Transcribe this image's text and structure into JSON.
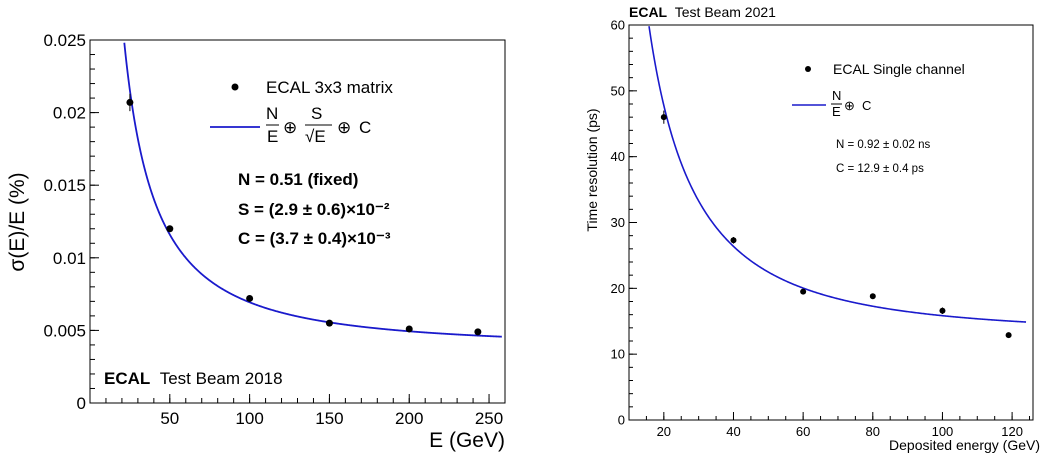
{
  "chart_data": [
    {
      "type": "scatter",
      "xlabel": "E (GeV)",
      "ylabel": "σ(E)/E (%)",
      "xlim": [
        0,
        260
      ],
      "ylim": [
        0,
        0.025
      ],
      "xticks": [
        "50",
        "100",
        "150",
        "200",
        "250"
      ],
      "yticks": [
        "0",
        "0.005",
        "0.01",
        "0.015",
        "0.02",
        "0.025"
      ],
      "legend": {
        "placement": "top-right",
        "marker_label": "ECAL 3x3 matrix",
        "fit_label": "N/E ⊕ S/√E ⊕ C"
      },
      "fit_results": [
        "N = 0.51 (fixed)",
        "S = (2.9 ± 0.6)×10⁻²",
        "C = (3.7 ± 0.4)×10⁻³"
      ],
      "label_bold": "ECAL",
      "label_rest": "Test Beam 2018",
      "colors": {
        "fit": "#1a1acc",
        "points": "#000000"
      },
      "series": [
        {
          "x": [
            25,
            50,
            100,
            150,
            200,
            243
          ],
          "y": [
            0.0207,
            0.012,
            0.0072,
            0.0055,
            0.0051,
            0.0049
          ],
          "yerr": [
            0.0006,
            0.0002,
            0.0001,
            0.0001,
            0.0001,
            0.0002
          ]
        }
      ],
      "fit": {
        "N": 0.51,
        "S": 0.029,
        "C": 0.0037
      }
    },
    {
      "type": "scatter",
      "title_bold": "ECAL",
      "title_rest": "Test Beam 2021",
      "xlabel": "Deposited energy (GeV)",
      "ylabel": "Time resolution (ps)",
      "xlim": [
        10,
        126
      ],
      "ylim": [
        0,
        60
      ],
      "xticks": [
        "20",
        "40",
        "60",
        "80",
        "100",
        "120"
      ],
      "yticks": [
        "0",
        "10",
        "20",
        "30",
        "40",
        "50",
        "60"
      ],
      "legend": {
        "placement": "top-right",
        "marker_label": "ECAL Single channel",
        "fit_label": "N/E ⊕ C"
      },
      "fit_results": [
        "N = 0.92 ± 0.02 ns",
        "C = 12.9 ± 0.4 ps"
      ],
      "colors": {
        "fit": "#1a1acc",
        "points": "#000000"
      },
      "series": [
        {
          "x": [
            20,
            40,
            60,
            80,
            100,
            119
          ],
          "y": [
            46.0,
            27.3,
            19.5,
            18.8,
            16.6,
            12.9
          ],
          "yerr": [
            1.0,
            0.5,
            0.4,
            0.4,
            0.5,
            0.4
          ]
        }
      ],
      "fit": {
        "N": 920,
        "C": 12.9
      }
    }
  ]
}
